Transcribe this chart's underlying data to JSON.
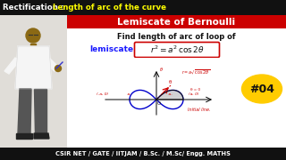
{
  "title_left": "Rectification : ",
  "title_right": "Length of arc of the curve",
  "subtitle": "Lemiscate of Bernoulli",
  "find_text": "Find length of arc of loop of",
  "lemiscate_label": "lemiscate",
  "equation": "$r^2 = a^2\\,\\cos 2\\theta$",
  "tag": "#04",
  "bottom_text": "CSIR NET / GATE / IITJAM / B.Sc. / M.Sc/ Engg. MATHS",
  "bg_color": "#f0ede8",
  "header_bg": "#111111",
  "subtitle_bg": "#cc0000",
  "bottom_bg": "#111111",
  "title_left_color": "#ffffff",
  "title_right_color": "#ffff00",
  "subtitle_color": "#ffffff",
  "find_color": "#111111",
  "lemiscate_color": "#1a1aff",
  "equation_color": "#111111",
  "tag_color": "#111111",
  "tag_bg": "#ffcc00",
  "bottom_color": "#ffffff",
  "annotation_color_red": "#cc0000",
  "curve_color_blue": "#0000cc",
  "curve_color_black": "#111111",
  "person_bg": "#e0ddd8"
}
